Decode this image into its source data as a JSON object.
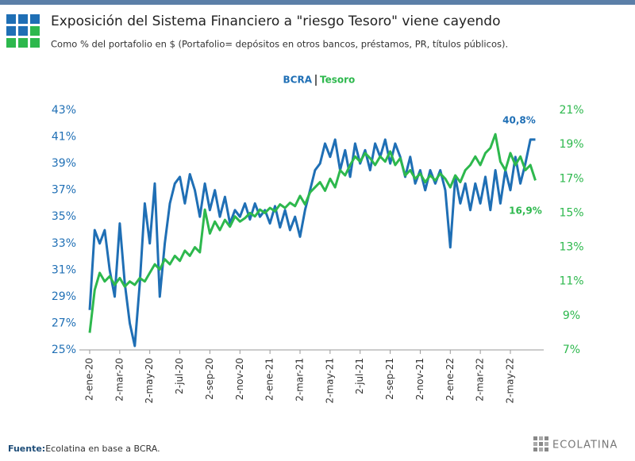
{
  "header": {
    "title": "Exposición del Sistema Financiero a \"riesgo Tesoro\" viene cayendo",
    "subtitle": "Como % del portafolio en $ (Portafolio= depósitos en otros bancos, préstamos, PR, títulos públicos)."
  },
  "chart_data": {
    "type": "line",
    "categories": [
      "2-ene-20",
      null,
      null,
      null,
      null,
      null,
      "2-mar-20",
      null,
      null,
      null,
      null,
      null,
      "2-may-20",
      null,
      null,
      null,
      null,
      null,
      "2-jul-20",
      null,
      null,
      null,
      null,
      null,
      "2-sep-20",
      null,
      null,
      null,
      null,
      null,
      "2-nov-20",
      null,
      null,
      null,
      null,
      null,
      "2-ene-21",
      null,
      null,
      null,
      null,
      null,
      "2-mar-21",
      null,
      null,
      null,
      null,
      null,
      "2-may-21",
      null,
      null,
      null,
      null,
      null,
      "2-jul-21",
      null,
      null,
      null,
      null,
      null,
      "2-sep-21",
      null,
      null,
      null,
      null,
      null,
      "2-nov-21",
      null,
      null,
      null,
      null,
      null,
      "2-ene-22",
      null,
      null,
      null,
      null,
      null,
      "2-mar-22",
      null,
      null,
      null,
      null,
      null,
      "2-may-22",
      null,
      null,
      null,
      null,
      null
    ],
    "series": [
      {
        "name": "BCRA",
        "color": "#1f6fb5",
        "axis": "y",
        "values": [
          28,
          34,
          33,
          34,
          31,
          29,
          34.5,
          30,
          27,
          25.3,
          30,
          36,
          33,
          37.5,
          29,
          33,
          36,
          37.5,
          38,
          36,
          38.2,
          37,
          35,
          37.5,
          35.5,
          37,
          35,
          36.5,
          34.5,
          35.5,
          35,
          36,
          34.8,
          36,
          35,
          35.5,
          34.5,
          35.8,
          34.2,
          35.5,
          34,
          35,
          33.5,
          35.5,
          37,
          38.5,
          39,
          40.5,
          39.5,
          40.8,
          38.5,
          40,
          38,
          40.5,
          39,
          40,
          38.5,
          40.5,
          39.5,
          40.8,
          39,
          40.5,
          39.5,
          38,
          39.5,
          37.5,
          38.5,
          37,
          38.5,
          37.5,
          38.5,
          37,
          32.7,
          38,
          36,
          37.5,
          35.5,
          37.5,
          36,
          38,
          35.5,
          38.5,
          36,
          38.5,
          37,
          39.5,
          37.5,
          39,
          40.8,
          40.8
        ]
      },
      {
        "name": "Tesoro",
        "color": "#2db84d",
        "axis": "y2",
        "values": [
          8,
          10.5,
          11.5,
          11,
          11.3,
          10.8,
          11.2,
          10.7,
          11,
          10.8,
          11.2,
          11,
          11.5,
          12,
          11.7,
          12.3,
          12,
          12.5,
          12.2,
          12.8,
          12.5,
          13,
          12.7,
          15.2,
          13.8,
          14.5,
          14,
          14.6,
          14.2,
          14.8,
          14.5,
          14.7,
          15,
          14.8,
          15.2,
          15,
          15.3,
          15.1,
          15.5,
          15.3,
          15.6,
          15.4,
          16,
          15.5,
          16.2,
          16.5,
          16.8,
          16.3,
          17,
          16.5,
          17.5,
          17.2,
          17.8,
          18.3,
          18,
          18.5,
          18.2,
          17.8,
          18.3,
          18,
          18.6,
          17.8,
          18.2,
          17.2,
          17.5,
          17,
          17.3,
          16.8,
          17.2,
          16.9,
          17.3,
          17,
          16.5,
          17.2,
          16.8,
          17.5,
          17.8,
          18.3,
          17.8,
          18.5,
          18.8,
          19.6,
          18,
          17.5,
          18.5,
          17.8,
          18.3,
          17.5,
          17.8,
          16.9
        ]
      }
    ],
    "ylim": [
      25,
      43
    ],
    "yticks": [
      {
        "value": 25,
        "label": "25%"
      },
      {
        "value": 27,
        "label": "27%"
      },
      {
        "value": 29,
        "label": "29%"
      },
      {
        "value": 31,
        "label": "31%"
      },
      {
        "value": 33,
        "label": "33%"
      },
      {
        "value": 35,
        "label": "35%"
      },
      {
        "value": 37,
        "label": "37%"
      },
      {
        "value": 39,
        "label": "39%"
      },
      {
        "value": 41,
        "label": "41%"
      },
      {
        "value": 43,
        "label": "43%"
      }
    ],
    "y2lim": [
      7,
      21
    ],
    "y2ticks": [
      {
        "value": 7,
        "label": "7%"
      },
      {
        "value": 9,
        "label": "9%"
      },
      {
        "value": 11,
        "label": "11%"
      },
      {
        "value": 13,
        "label": "13%"
      },
      {
        "value": 15,
        "label": "15%"
      },
      {
        "value": 17,
        "label": "17%"
      },
      {
        "value": 19,
        "label": "19%"
      },
      {
        "value": 21,
        "label": "21%"
      }
    ],
    "annotations": [
      "40,8%",
      "16,9%"
    ]
  },
  "footer": {
    "source_label": "Fuente:",
    "source_text": "Ecolatina en base a BCRA.",
    "brand": "ECOLATINA"
  }
}
